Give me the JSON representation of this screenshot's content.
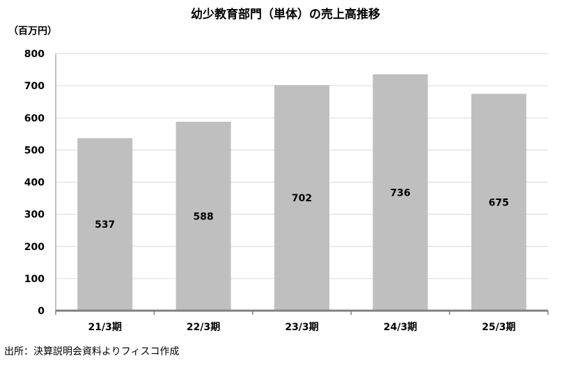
{
  "chart_data": {
    "type": "bar",
    "title": "幼少教育部門（単体）の売上高推移",
    "unit_label": "（百万円）",
    "categories": [
      "21/3期",
      "22/3期",
      "23/3期",
      "24/3期",
      "25/3期"
    ],
    "values": [
      537,
      588,
      702,
      736,
      675
    ],
    "ylim": [
      0,
      800
    ],
    "yticks": [
      "0",
      "100",
      "200",
      "300",
      "400",
      "500",
      "600",
      "700",
      "800"
    ],
    "grid": true,
    "bar_color": "#bfbfbf",
    "grid_color": "#d9d9d9",
    "axis_color": "#808080"
  },
  "source": "出所：決算説明会資料よりフィスコ作成"
}
